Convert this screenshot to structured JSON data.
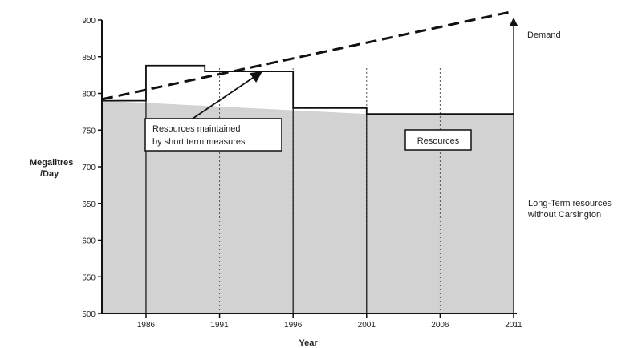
{
  "chart_data": {
    "type": "area",
    "title": "",
    "xlabel": "Year",
    "ylabel_lines": [
      "Megalitres",
      "/Day"
    ],
    "xlim": [
      1983,
      2011
    ],
    "ylim": [
      500,
      900
    ],
    "x_ticks": [
      1986,
      1991,
      1996,
      2001,
      2006,
      2011
    ],
    "y_ticks": [
      500,
      550,
      600,
      650,
      700,
      750,
      800,
      850,
      900
    ],
    "grid": "vertical dotted",
    "series": [
      {
        "name": "Demand",
        "style": "dashed",
        "points": [
          [
            1983,
            792
          ],
          [
            2011,
            912
          ]
        ]
      },
      {
        "name": "Resources",
        "style": "step",
        "steps": [
          {
            "x0": 1983,
            "x1": 1986,
            "y": 790
          },
          {
            "x0": 1986,
            "x1": 1990,
            "y": 838
          },
          {
            "x0": 1990,
            "x1": 1996,
            "y": 830
          },
          {
            "x0": 1996,
            "x1": 2001,
            "y": 780
          },
          {
            "x0": 2001,
            "x1": 2011,
            "y": 772
          }
        ]
      },
      {
        "name": "Long-Term resources without Carsington",
        "style": "shaded",
        "points": [
          [
            1983,
            790
          ],
          [
            2001,
            772
          ],
          [
            2011,
            772
          ]
        ]
      }
    ],
    "annotations": {
      "short_term_lines": [
        "Resources maintained",
        "by short term measures"
      ],
      "resources_label": "Resources",
      "demand_label": "Demand",
      "long_term_lines": [
        "Long-Term resources",
        "without Carsington"
      ]
    },
    "colors": {
      "shade": "#d2d2d2",
      "line": "#111111",
      "grid": "#555555"
    }
  }
}
